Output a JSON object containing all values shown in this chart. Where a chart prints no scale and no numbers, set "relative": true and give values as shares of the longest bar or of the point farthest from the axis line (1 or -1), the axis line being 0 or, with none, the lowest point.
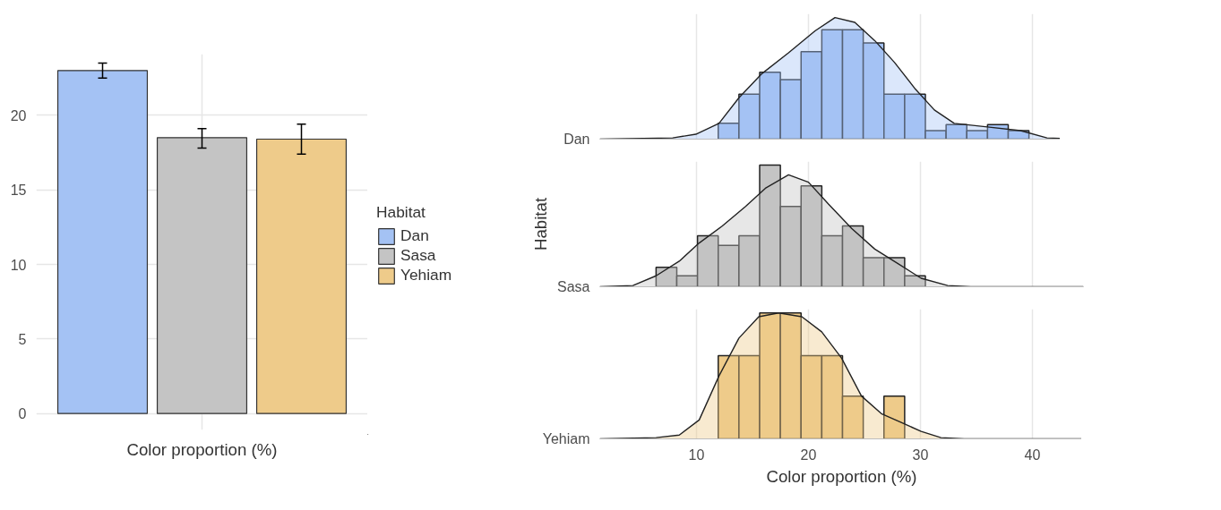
{
  "chart_data": [
    {
      "type": "bar",
      "xlabel": "Color proportion (%)",
      "legend_title": "Habitat",
      "legend": "right",
      "grid": true,
      "categories": [
        null
      ],
      "ylim": [
        -1.1,
        24.1
      ],
      "yticks": [
        0,
        5,
        10,
        15,
        20
      ],
      "series": [
        {
          "name": "Dan",
          "color": "#a4c2f4",
          "values": [
            23.0
          ],
          "errors": [
            [
              22.5,
              23.5
            ]
          ]
        },
        {
          "name": "Sasa",
          "color": "#c4c4c4",
          "values": [
            18.5
          ],
          "errors": [
            [
              17.8,
              19.1
            ]
          ]
        },
        {
          "name": "Yehiam",
          "color": "#eecb8a",
          "values": [
            18.4
          ],
          "errors": [
            [
              17.4,
              19.4
            ]
          ]
        }
      ]
    },
    {
      "type": "histogram",
      "relative": true,
      "grid": "x",
      "tick_labels": "y",
      "xlim": [
        1.36,
        44.56
      ],
      "xticks": [
        10,
        20,
        30,
        40
      ],
      "series": [
        {
          "name": "Dan",
          "color": "#a4c2f4",
          "bins": [
            11.94,
            13.79,
            15.64,
            17.49,
            19.34,
            21.19,
            23.04,
            24.89,
            26.74,
            28.59,
            30.44,
            32.29,
            34.14,
            35.99,
            37.84,
            39.69,
            41.54
          ],
          "values": [
            0.13,
            0.37,
            0.55,
            0.49,
            0.72,
            0.9,
            0.9,
            0.79,
            0.37,
            0.37,
            0.07,
            0.12,
            0.07,
            0.12,
            0.07,
            0
          ]
        },
        {
          "type": "area",
          "color": "#a4c2f4",
          "x": [
            1.36,
            7.87,
            9.94,
            12.01,
            13.79,
            15.86,
            18.22,
            20.59,
            22.37,
            24.14,
            25.92,
            27.69,
            29.47,
            31.24,
            33.02,
            35.98,
            38.94,
            41.3,
            44.56
          ],
          "values": [
            0,
            0.01,
            0.04,
            0.13,
            0.34,
            0.54,
            0.71,
            0.89,
            1.0,
            0.96,
            0.81,
            0.63,
            0.42,
            0.24,
            0.13,
            0.1,
            0.07,
            0.01,
            0
          ]
        }
      ]
    },
    {
      "type": "histogram",
      "relative": true,
      "ylabel": "Habitat",
      "grid": "x",
      "tick_labels": "y",
      "xlim": [
        1.36,
        44.56
      ],
      "xticks": [
        10,
        20,
        30,
        40
      ],
      "series": [
        {
          "name": "Sasa",
          "color": "#c4c4c4",
          "bins": [
            6.39,
            8.24,
            10.09,
            11.94,
            13.79,
            15.64,
            17.49,
            19.34,
            21.19,
            23.04,
            24.89,
            26.74,
            28.59,
            30.44
          ],
          "values": [
            0.16,
            0.09,
            0.42,
            0.34,
            0.42,
            1.0,
            0.66,
            0.83,
            0.42,
            0.5,
            0.24,
            0.24,
            0.09
          ]
        },
        {
          "type": "area",
          "color": "#c4c4c4",
          "x": [
            1.36,
            4.32,
            6.39,
            8.46,
            10.24,
            12.31,
            14.38,
            16.15,
            18.22,
            20,
            21.78,
            23.85,
            25.92,
            27.99,
            30.06,
            32.43,
            34.5,
            44.56
          ],
          "values": [
            0,
            0.01,
            0.09,
            0.21,
            0.36,
            0.5,
            0.66,
            0.81,
            0.92,
            0.86,
            0.68,
            0.48,
            0.31,
            0.19,
            0.07,
            0.01,
            0,
            0
          ]
        }
      ]
    },
    {
      "type": "histogram",
      "relative": true,
      "xlabel": "Color proportion (%)",
      "grid": "x",
      "xlim": [
        1.36,
        44.56
      ],
      "xticks": [
        10,
        20,
        30,
        40
      ],
      "series": [
        {
          "name": "Yehiam",
          "color": "#eecb8a",
          "bins": [
            11.94,
            13.79,
            15.64,
            17.49,
            19.34,
            21.19,
            23.04,
            24.89,
            26.74,
            28.59
          ],
          "values": [
            0.66,
            0.66,
            1,
            1,
            0.66,
            0.66,
            0.34,
            0,
            0.34
          ]
        },
        {
          "type": "area",
          "color": "#eecb8a",
          "x": [
            1.36,
            6.39,
            8.46,
            10.24,
            12.01,
            13.79,
            15.56,
            17.34,
            19.41,
            21.18,
            22.96,
            24.73,
            26.51,
            28.28,
            30.06,
            31.83,
            33.91,
            44.56
          ],
          "values": [
            0,
            0.01,
            0.03,
            0.15,
            0.5,
            0.8,
            0.97,
            1.0,
            0.97,
            0.85,
            0.64,
            0.34,
            0.2,
            0.13,
            0.06,
            0.01,
            0,
            0
          ]
        }
      ]
    }
  ]
}
